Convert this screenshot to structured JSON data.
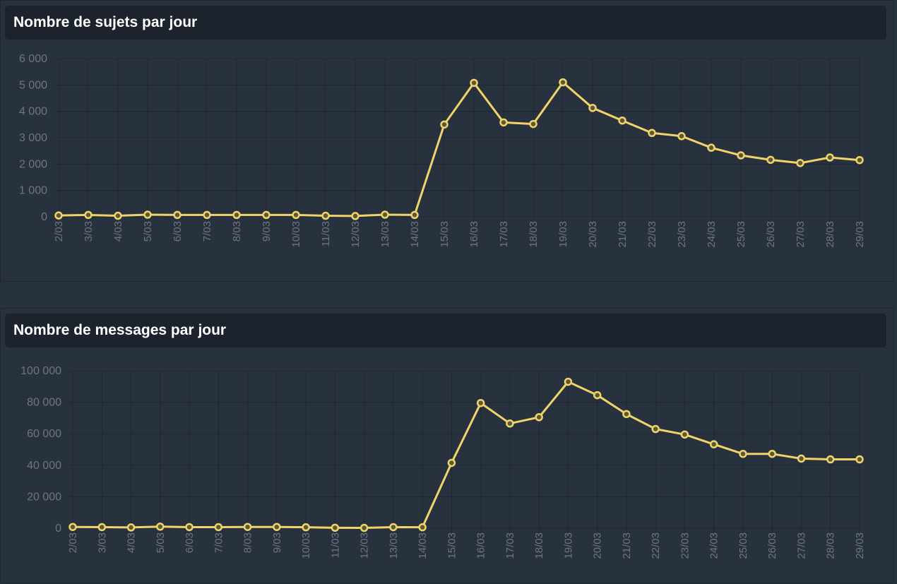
{
  "colors": {
    "background": "#28323f",
    "header_bg": "#1d232c",
    "line": "#f0d46a",
    "grid": "#1f2832",
    "axis_text": "#6d7580"
  },
  "panels": [
    {
      "title": "Nombre de sujets par jour"
    },
    {
      "title": "Nombre de messages par jour"
    }
  ],
  "chart_data": [
    {
      "type": "line",
      "title": "Nombre de sujets par jour",
      "xlabel": "",
      "ylabel": "",
      "categories": [
        "2/03",
        "3/03",
        "4/03",
        "5/03",
        "6/03",
        "7/03",
        "8/03",
        "9/03",
        "10/03",
        "11/03",
        "12/03",
        "13/03",
        "14/03",
        "15/03",
        "16/03",
        "17/03",
        "18/03",
        "19/03",
        "20/03",
        "21/03",
        "22/03",
        "23/03",
        "24/03",
        "25/03",
        "26/03",
        "27/03",
        "28/03",
        "29/03"
      ],
      "series": [
        {
          "values": [
            50,
            70,
            40,
            80,
            70,
            70,
            70,
            70,
            70,
            40,
            30,
            80,
            70,
            3500,
            5080,
            3580,
            3520,
            5100,
            4130,
            3650,
            3180,
            3060,
            2620,
            2330,
            2160,
            2040,
            2250,
            2150
          ]
        }
      ],
      "ylim": [
        0,
        6000
      ],
      "yticks": [
        0,
        1000,
        2000,
        3000,
        4000,
        5000,
        6000
      ],
      "ytick_labels": [
        "0",
        "1 000",
        "2 000",
        "3 000",
        "4 000",
        "5 000",
        "6 000"
      ],
      "grid": true
    },
    {
      "type": "line",
      "title": "Nombre de messages par jour",
      "xlabel": "",
      "ylabel": "",
      "categories": [
        "2/03",
        "3/03",
        "4/03",
        "5/03",
        "6/03",
        "7/03",
        "8/03",
        "9/03",
        "10/03",
        "11/03",
        "12/03",
        "13/03",
        "14/03",
        "15/03",
        "16/03",
        "17/03",
        "18/03",
        "19/03",
        "20/03",
        "21/03",
        "22/03",
        "23/03",
        "24/03",
        "25/03",
        "26/03",
        "27/03",
        "28/03",
        "29/03"
      ],
      "series": [
        {
          "values": [
            800,
            700,
            500,
            1000,
            700,
            700,
            800,
            800,
            600,
            300,
            200,
            700,
            600,
            41500,
            79500,
            66500,
            70500,
            93000,
            84500,
            72500,
            63000,
            59500,
            53300,
            47200,
            47200,
            44200,
            43700,
            43700
          ]
        }
      ],
      "ylim": [
        0,
        100000
      ],
      "yticks": [
        0,
        20000,
        40000,
        60000,
        80000,
        100000
      ],
      "ytick_labels": [
        "0",
        "20 000",
        "40 000",
        "60 000",
        "80 000",
        "100 000"
      ],
      "grid": true
    }
  ]
}
